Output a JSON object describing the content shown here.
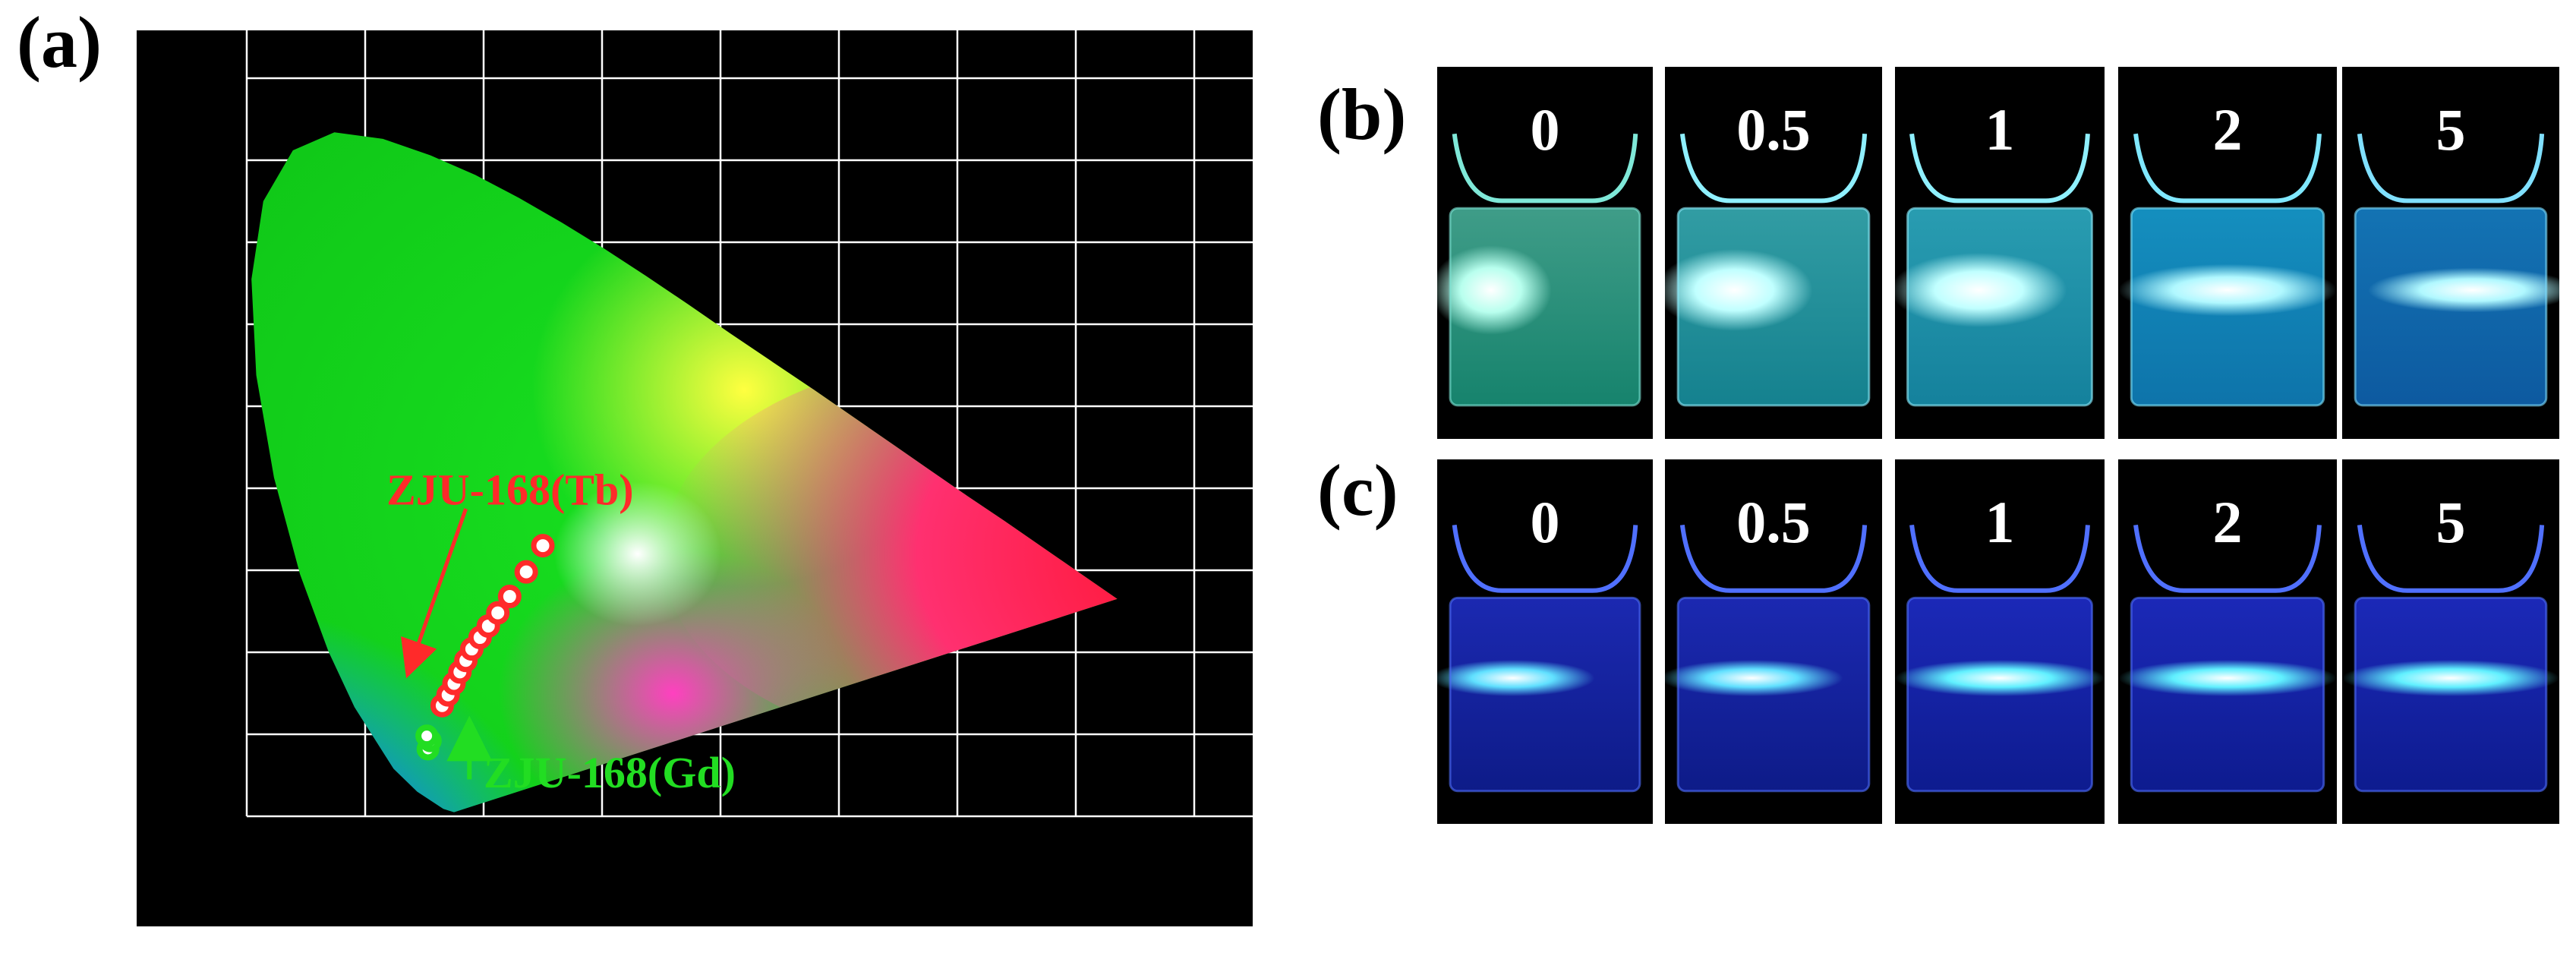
{
  "labels": {
    "a": "(a)",
    "b": "(b)",
    "c": "(c)"
  },
  "chart_data": {
    "type": "scatter",
    "title": "",
    "xlabel": "",
    "ylabel": "",
    "xlim": [
      0,
      0.8
    ],
    "ylim": [
      0,
      0.9
    ],
    "xticks": [
      "0",
      "0.2",
      "0.4",
      "0.6",
      "0.8"
    ],
    "yticks": [
      "0",
      "0.2",
      "0.4",
      "0.6",
      "0.8"
    ],
    "grid": true,
    "background": "CIE 1931 chromaticity diagram",
    "series": [
      {
        "name": "ZJU-168(Tb)",
        "color": "#ff2a2a",
        "points": [
          [
            0.165,
            0.135
          ],
          [
            0.17,
            0.148
          ],
          [
            0.175,
            0.162
          ],
          [
            0.18,
            0.176
          ],
          [
            0.185,
            0.19
          ],
          [
            0.19,
            0.204
          ],
          [
            0.197,
            0.218
          ],
          [
            0.204,
            0.232
          ],
          [
            0.212,
            0.248
          ],
          [
            0.222,
            0.268
          ],
          [
            0.236,
            0.298
          ],
          [
            0.25,
            0.33
          ]
        ]
      },
      {
        "name": "ZJU-168(Gd)",
        "color": "#22dd22",
        "points": [
          [
            0.153,
            0.082
          ],
          [
            0.155,
            0.092
          ],
          [
            0.152,
            0.098
          ]
        ]
      }
    ],
    "annotations": [
      {
        "text": "ZJU-168(Tb)",
        "color": "#ff2a2a",
        "arrow": "down-left"
      },
      {
        "text": "ZJU-168(Gd)",
        "color": "#22dd22",
        "arrow": "up"
      }
    ]
  },
  "photos": {
    "b_labels": [
      "0",
      "0.5",
      "1",
      "2",
      "5"
    ],
    "c_labels": [
      "0",
      "0.5",
      "1",
      "2",
      "5"
    ]
  }
}
